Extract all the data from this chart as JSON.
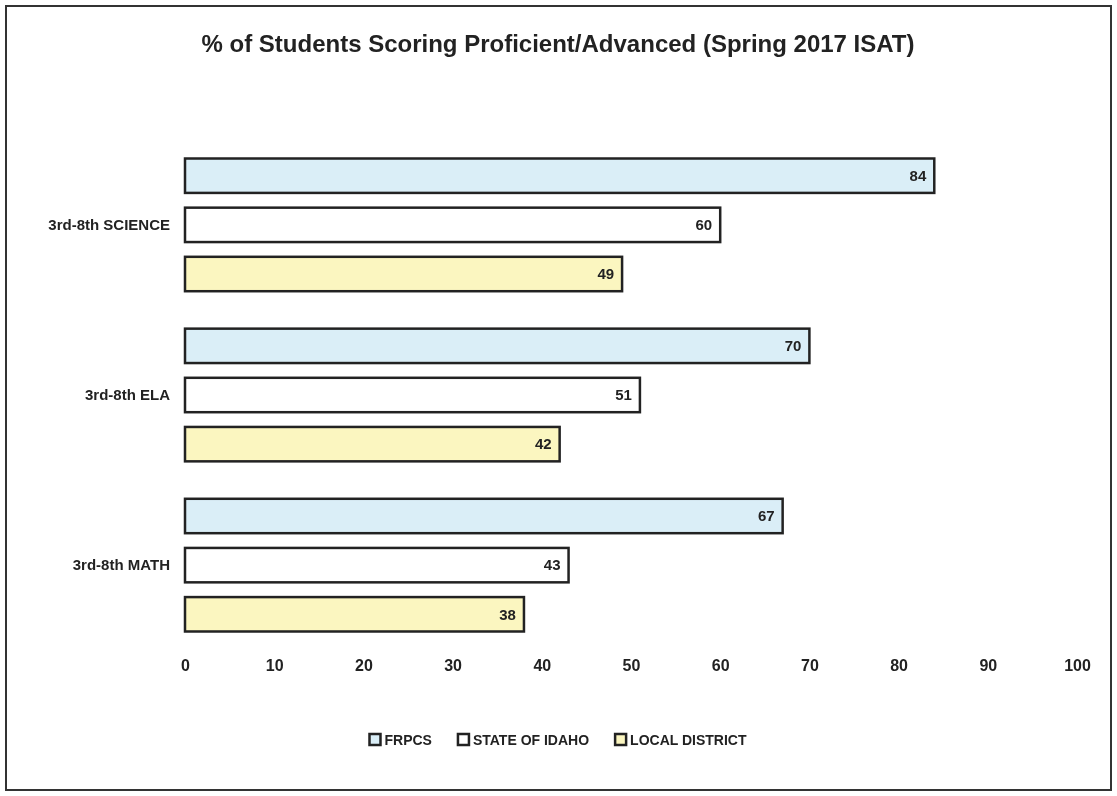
{
  "chart_data": {
    "type": "bar",
    "orientation": "horizontal",
    "title": "% of Students Scoring Proficient/Advanced (Spring 2017 ISAT)",
    "categories": [
      "3rd-8th SCIENCE",
      "3rd-8th ELA",
      "3rd-8th MATH"
    ],
    "series": [
      {
        "name": "FRPCS",
        "color": "#daeef7",
        "values": [
          84,
          70,
          67
        ]
      },
      {
        "name": "STATE OF IDAHO",
        "color": "#ffffff",
        "values": [
          60,
          51,
          43
        ]
      },
      {
        "name": "LOCAL DISTRICT",
        "color": "#fbf6c0",
        "values": [
          49,
          42,
          38
        ]
      }
    ],
    "xlim": [
      0,
      100
    ],
    "xticks": [
      0,
      10,
      20,
      30,
      40,
      50,
      60,
      70,
      80,
      90,
      100
    ],
    "data_labels": true,
    "legend": "bottom"
  }
}
